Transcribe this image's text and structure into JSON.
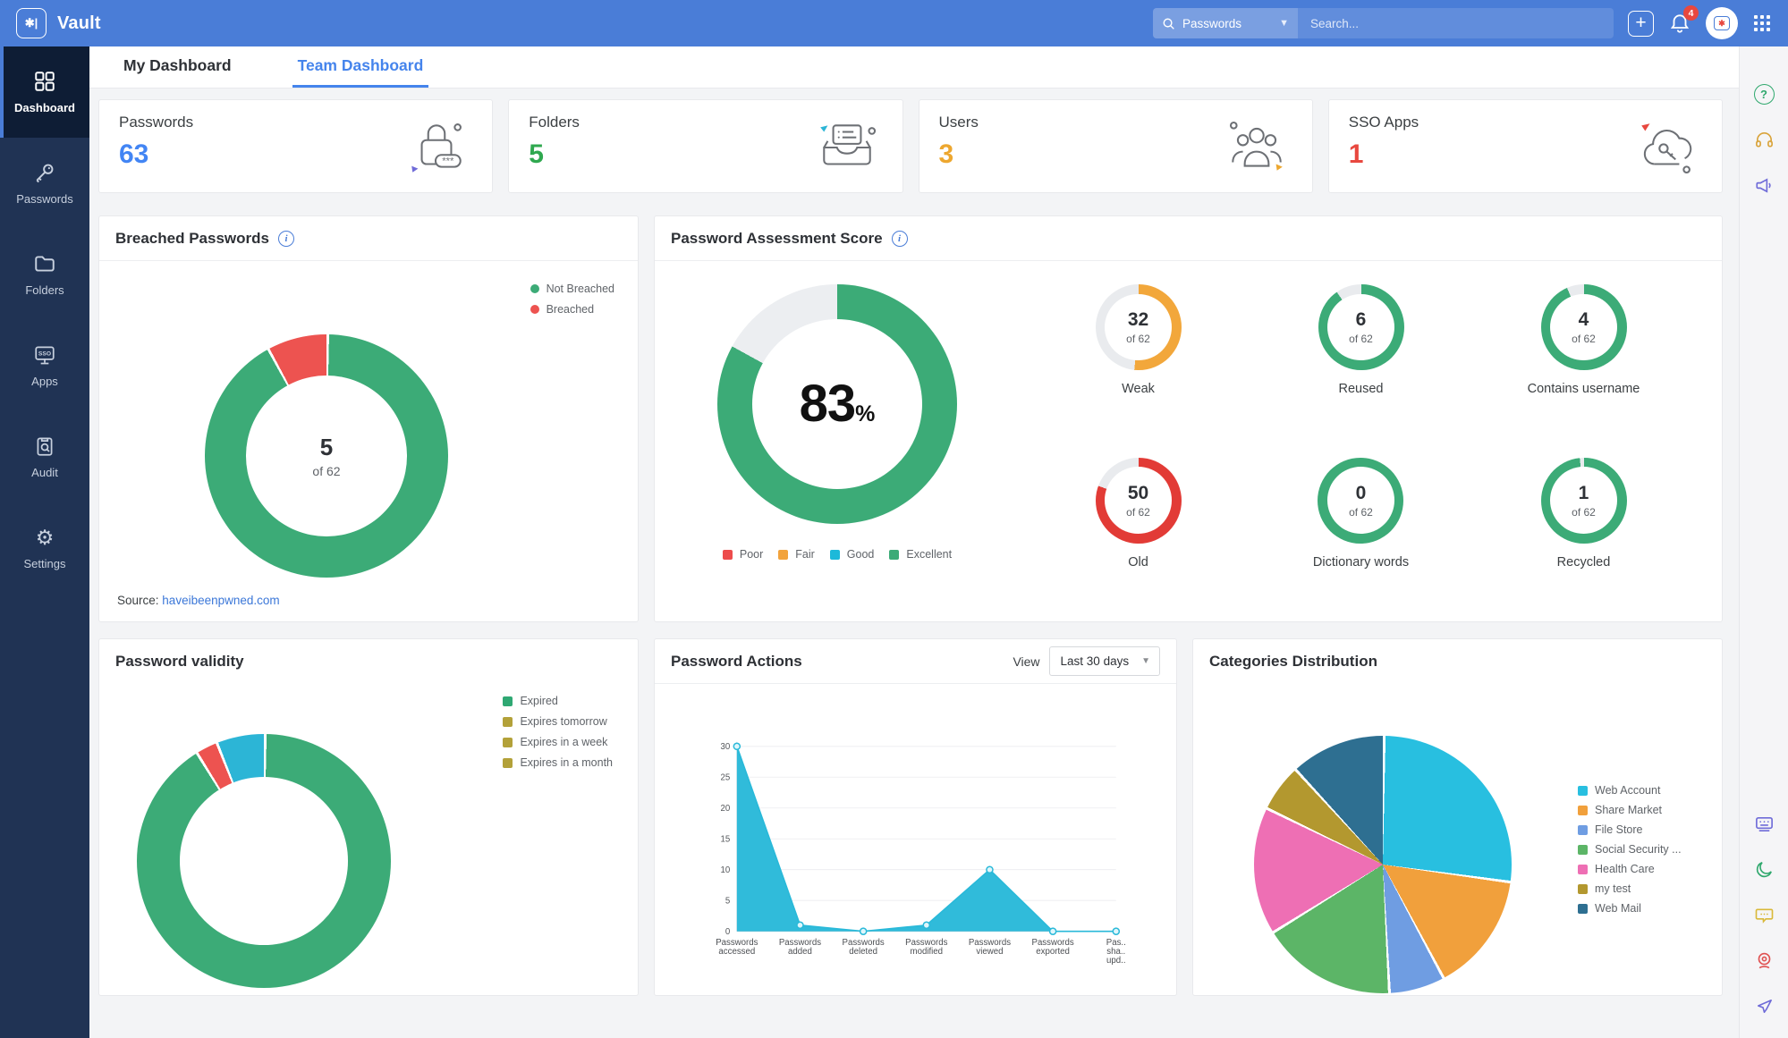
{
  "topbar": {
    "app_name": "Vault",
    "search_scope": "Passwords",
    "search_placeholder": "Search...",
    "notification_count": "4"
  },
  "sidebar": {
    "items": [
      {
        "label": "Dashboard"
      },
      {
        "label": "Passwords"
      },
      {
        "label": "Folders"
      },
      {
        "label": "Apps"
      },
      {
        "label": "Audit"
      },
      {
        "label": "Settings"
      }
    ]
  },
  "tabs": {
    "my": "My Dashboard",
    "team": "Team Dashboard"
  },
  "stat_cards": [
    {
      "label": "Passwords",
      "value": "63",
      "color": "#4285f4"
    },
    {
      "label": "Folders",
      "value": "5",
      "color": "#2fa84f"
    },
    {
      "label": "Users",
      "value": "3",
      "color": "#eda72f"
    },
    {
      "label": "SSO Apps",
      "value": "1",
      "color": "#e8483f"
    }
  ],
  "breached": {
    "title": "Breached Passwords",
    "chart_type": "donut",
    "center_value": "5",
    "center_sub": "of 62",
    "legend": [
      {
        "label": "Not Breached",
        "color": "#3cab77"
      },
      {
        "label": "Breached",
        "color": "#ed5350"
      }
    ],
    "donut_segments": [
      {
        "color": "#3cab77",
        "pct": 91.9
      },
      {
        "color": "#ed5350",
        "pct": 8.1
      }
    ],
    "source_label": "Source:",
    "source_link": "haveibeenpwned.com"
  },
  "assessment": {
    "title": "Password Assessment Score",
    "chart_type": "donut",
    "score_value": "83",
    "score_unit": "%",
    "donut_segments": [
      {
        "color": "#3cab77",
        "pct": 83
      },
      {
        "color": "#eceef1",
        "pct": 17
      }
    ],
    "legend": [
      {
        "label": "Poor",
        "color": "#ed4c4c"
      },
      {
        "label": "Fair",
        "color": "#f2a33c"
      },
      {
        "label": "Good",
        "color": "#1db9d9"
      },
      {
        "label": "Excellent",
        "color": "#3cab77"
      }
    ],
    "metrics": [
      {
        "value": "32",
        "sub": "of 62",
        "label": "Weak",
        "segments": [
          {
            "color": "#f2a73b",
            "pct": 51.6
          },
          {
            "color": "#e9ebee",
            "pct": 48.4
          }
        ]
      },
      {
        "value": "6",
        "sub": "of 62",
        "label": "Reused",
        "segments": [
          {
            "color": "#3cab77",
            "pct": 90.3
          },
          {
            "color": "#e9ebee",
            "pct": 9.7
          }
        ]
      },
      {
        "value": "4",
        "sub": "of 62",
        "label": "Contains username",
        "segments": [
          {
            "color": "#3cab77",
            "pct": 93.5
          },
          {
            "color": "#e9ebee",
            "pct": 6.5
          }
        ]
      },
      {
        "value": "50",
        "sub": "of 62",
        "label": "Old",
        "segments": [
          {
            "color": "#e23b36",
            "pct": 80.6
          },
          {
            "color": "#e9ebee",
            "pct": 19.4
          }
        ]
      },
      {
        "value": "0",
        "sub": "of 62",
        "label": "Dictionary words",
        "segments": [
          {
            "color": "#3cab77",
            "pct": 100
          }
        ]
      },
      {
        "value": "1",
        "sub": "of 62",
        "label": "Recycled",
        "segments": [
          {
            "color": "#3cab77",
            "pct": 98.4
          },
          {
            "color": "#e9ebee",
            "pct": 1.6
          }
        ]
      }
    ]
  },
  "validity": {
    "title": "Password validity",
    "chart_type": "donut",
    "legend": [
      {
        "label": "Expired",
        "color": "#2fa873"
      },
      {
        "label": "Expires tomorrow",
        "color": "#b3a139"
      },
      {
        "label": "Expires in a week",
        "color": "#b3a139"
      },
      {
        "label": "Expires in a month",
        "color": "#b3a139"
      }
    ],
    "donut_segments": [
      {
        "color": "#3cab77",
        "pct": 91
      },
      {
        "color": "#ed5350",
        "pct": 2.8
      },
      {
        "color": "#2cb5d6",
        "pct": 6.2
      }
    ]
  },
  "actions": {
    "title": "Password Actions",
    "view_label": "View",
    "view_value": "Last 30 days",
    "chart": {
      "type": "area",
      "color": "#29b9d9",
      "categories": [
        [
          "Passwords",
          "accessed"
        ],
        [
          "Passwords",
          "added"
        ],
        [
          "Passwords",
          "deleted"
        ],
        [
          "Passwords",
          "modified"
        ],
        [
          "Passwords",
          "viewed"
        ],
        [
          "Passwords",
          "exported"
        ],
        [
          "Pas..",
          "sha..",
          "upd.."
        ]
      ],
      "values": [
        30,
        1,
        0,
        1,
        10,
        0,
        0
      ],
      "yticks": [
        0,
        5,
        10,
        15,
        20,
        25,
        30
      ],
      "ylim": [
        0,
        30
      ]
    }
  },
  "categories_dist": {
    "title": "Categories Distribution",
    "chart_type": "pie",
    "slices": [
      {
        "label": "Web Account",
        "color": "#28bfe0",
        "pct": 27
      },
      {
        "label": "Share Market",
        "color": "#f1a03c",
        "pct": 15
      },
      {
        "label": "File Store",
        "color": "#6f9de2",
        "pct": 7
      },
      {
        "label": "Social Security ...",
        "color": "#5cb567",
        "pct": 17
      },
      {
        "label": "Health Care",
        "color": "#ee6fb4",
        "pct": 16
      },
      {
        "label": "my test",
        "color": "#b3982f",
        "pct": 6
      },
      {
        "label": "Web Mail",
        "color": "#2e6f91",
        "pct": 12
      }
    ]
  },
  "icons": {
    "help_glyph": "?",
    "sso_text": "SSO",
    "lock_text": "***",
    "logo_glyph": "✱|"
  }
}
